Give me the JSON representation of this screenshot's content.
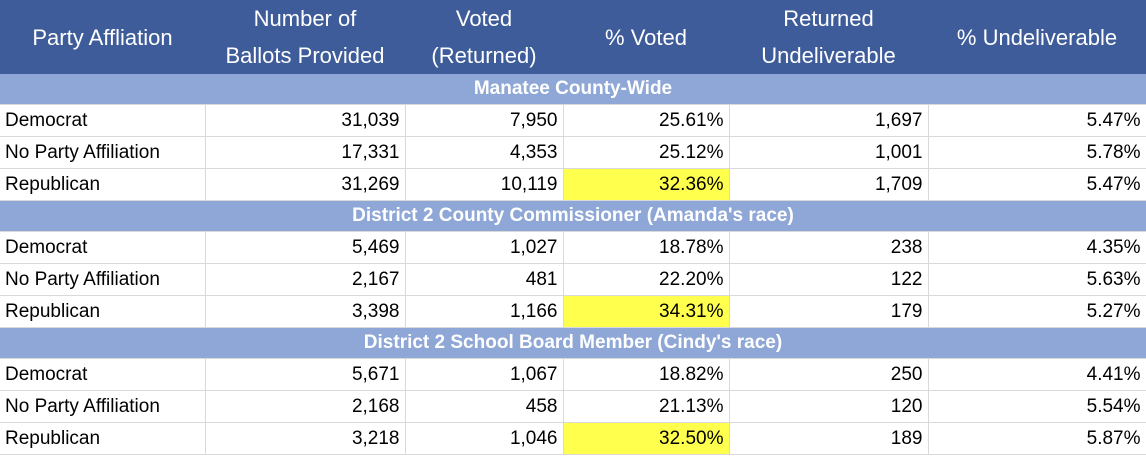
{
  "headers": [
    "Party Affliation",
    "Number of\nBallots Provided",
    "Voted\n(Returned)",
    "% Voted",
    "Returned\nUndeliverable",
    "% Undeliverable"
  ],
  "highlight_color": "#ffff4d",
  "header_color": "#3e5c9a",
  "group_color": "#8ea7d6",
  "groups": [
    {
      "title": "Manatee County-Wide",
      "rows": [
        [
          "Democrat",
          "31,039",
          "7,950",
          "25.61%",
          "1,697",
          "5.47%"
        ],
        [
          "No Party Affiliation",
          "17,331",
          "4,353",
          "25.12%",
          "1,001",
          "5.78%"
        ],
        [
          "Republican",
          "31,269",
          "10,119",
          "32.36%",
          "1,709",
          "5.47%"
        ]
      ]
    },
    {
      "title": "District 2 County Commissioner (Amanda's race)",
      "rows": [
        [
          "Democrat",
          "5,469",
          "1,027",
          "18.78%",
          "238",
          "4.35%"
        ],
        [
          "No Party Affiliation",
          "2,167",
          "481",
          "22.20%",
          "122",
          "5.63%"
        ],
        [
          "Republican",
          "3,398",
          "1,166",
          "34.31%",
          "179",
          "5.27%"
        ]
      ]
    },
    {
      "title": "District 2 School Board Member (Cindy's race)",
      "rows": [
        [
          "Democrat",
          "5,671",
          "1,067",
          "18.82%",
          "250",
          "4.41%"
        ],
        [
          "No Party Affiliation",
          "2,168",
          "458",
          "21.13%",
          "120",
          "5.54%"
        ],
        [
          "Republican",
          "3,218",
          "1,046",
          "32.50%",
          "189",
          "5.87%"
        ]
      ]
    }
  ]
}
